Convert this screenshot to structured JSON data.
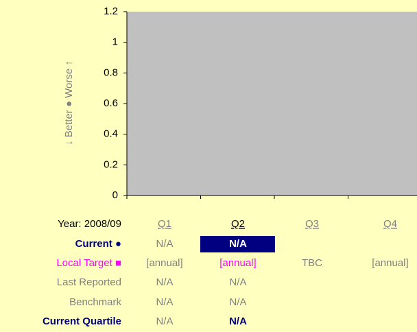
{
  "chart_data": {
    "type": "bar",
    "y_label": "↓ Better ● Worse ↑",
    "categories": [
      "Q1",
      "Q2",
      "Q3",
      "Q4"
    ],
    "ylim": [
      0,
      1.2
    ],
    "yticks": [
      0,
      0.2,
      0.4,
      0.6,
      0.8,
      1,
      1.2
    ],
    "plot_color": "#c0c0c0"
  },
  "table": {
    "header": "Year: 2008/09",
    "rows": [
      {
        "label": "Current ●",
        "cells": [
          "N/A",
          "N/A"
        ]
      },
      {
        "label": "Local Target ■",
        "cells": [
          "[annual]",
          "[annual]",
          "TBC",
          "[annual]"
        ]
      },
      {
        "label": "Last Reported",
        "cells": [
          "N/A",
          "N/A"
        ]
      },
      {
        "label": "Benchmark",
        "cells": [
          "N/A",
          "N/A"
        ]
      },
      {
        "label": "Current Quartile",
        "cells": [
          "N/A",
          "N/A"
        ]
      }
    ]
  }
}
